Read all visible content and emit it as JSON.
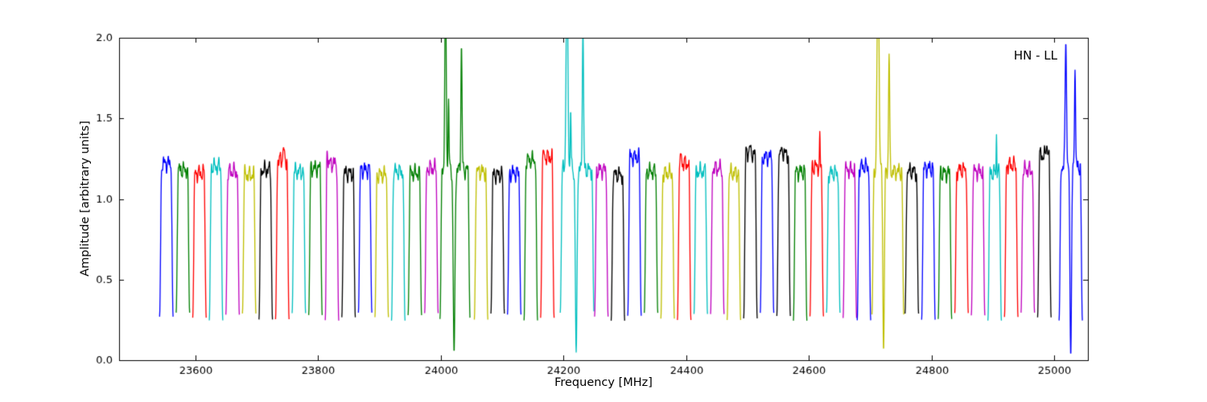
{
  "chart_data": {
    "type": "line",
    "title": "",
    "annotation": "HN - LL",
    "xlabel": "Frequency [MHz]",
    "ylabel": "Amplitude [arbitrary units]",
    "xlim": [
      23476,
      25055
    ],
    "ylim": [
      0,
      2.0
    ],
    "xticks": [
      23600,
      23800,
      24000,
      24200,
      24400,
      24600,
      24800,
      25000
    ],
    "yticks": [
      0,
      0.5,
      1.0,
      1.5,
      2.0
    ],
    "ytick_labels": [
      "0.0",
      "0.5",
      "1.0",
      "1.5",
      "2.0"
    ],
    "grid": false,
    "legend": false,
    "edge_level": 0.27,
    "rise_width": 3.5,
    "palette": {
      "b": "#0000ff",
      "g": "#007f00",
      "r": "#ff0000",
      "c": "#00bfbf",
      "m": "#bf00bf",
      "y": "#bfbf00",
      "k": "#000000"
    },
    "bands": [
      [
        23542,
        23564,
        "b",
        1.22
      ],
      [
        23569,
        23591,
        "g",
        1.18
      ],
      [
        23596,
        23618,
        "r",
        1.16
      ],
      [
        23623,
        23645,
        "c",
        1.2
      ],
      [
        23650,
        23672,
        "m",
        1.17
      ],
      [
        23677,
        23699,
        "y",
        1.15
      ],
      [
        23704,
        23726,
        "k",
        1.18
      ],
      [
        23731,
        23753,
        "r",
        1.24,
        [
          [
            23744,
            1.32,
            1.5
          ]
        ]
      ],
      [
        23758,
        23780,
        "c",
        1.17
      ],
      [
        23785,
        23807,
        "g",
        1.19
      ],
      [
        23812,
        23834,
        "m",
        1.22,
        [
          [
            23815,
            1.3,
            1.2
          ]
        ]
      ],
      [
        23839,
        23861,
        "k",
        1.16
      ],
      [
        23866,
        23888,
        "b",
        1.18
      ],
      [
        23893,
        23915,
        "y",
        1.15
      ],
      [
        23920,
        23942,
        "c",
        1.17
      ],
      [
        23947,
        23969,
        "g",
        1.16
      ],
      [
        23974,
        23996,
        "m",
        1.19
      ],
      [
        23999,
        24048,
        "g",
        1.18,
        [
          [
            24008,
            2.35,
            1.6
          ],
          [
            24013,
            1.62,
            1.0
          ],
          [
            24022,
            0.05,
            2.0
          ],
          [
            24034,
            1.95,
            1.3
          ]
        ]
      ],
      [
        24055,
        24077,
        "y",
        1.17
      ],
      [
        24082,
        24104,
        "k",
        1.15
      ],
      [
        24109,
        24131,
        "b",
        1.16
      ],
      [
        24136,
        24158,
        "g",
        1.24
      ],
      [
        24163,
        24185,
        "r",
        1.26,
        [
          [
            24168,
            1.3,
            1.2
          ]
        ]
      ],
      [
        24195,
        24250,
        "c",
        1.18,
        [
          [
            24206,
            2.45,
            2.0
          ],
          [
            24212,
            1.55,
            1.0
          ],
          [
            24221,
            0.05,
            1.9
          ],
          [
            24232,
            2.05,
            1.4
          ]
        ]
      ],
      [
        24251,
        24273,
        "m",
        1.18
      ],
      [
        24278,
        24300,
        "k",
        1.15
      ],
      [
        24305,
        24327,
        "b",
        1.26
      ],
      [
        24332,
        24354,
        "g",
        1.17
      ],
      [
        24359,
        24381,
        "y",
        1.16
      ],
      [
        24386,
        24408,
        "r",
        1.22,
        [
          [
            24392,
            1.28,
            1.2
          ]
        ]
      ],
      [
        24413,
        24435,
        "c",
        1.17
      ],
      [
        24440,
        24462,
        "m",
        1.19
      ],
      [
        24467,
        24489,
        "y",
        1.16
      ],
      [
        24494,
        24516,
        "k",
        1.28,
        [
          [
            24504,
            1.33,
            1.8
          ]
        ]
      ],
      [
        24521,
        24543,
        "b",
        1.26
      ],
      [
        24548,
        24570,
        "k",
        1.28,
        [
          [
            24556,
            1.32,
            1.5
          ]
        ]
      ],
      [
        24575,
        24597,
        "g",
        1.17
      ],
      [
        24602,
        24624,
        "r",
        1.2,
        [
          [
            24618,
            1.42,
            0.7
          ]
        ]
      ],
      [
        24629,
        24651,
        "c",
        1.16
      ],
      [
        24656,
        24678,
        "m",
        1.18
      ],
      [
        24679,
        24701,
        "b",
        1.2
      ],
      [
        24703,
        24755,
        "y",
        1.17,
        [
          [
            24713,
            2.5,
            2.2
          ],
          [
            24722,
            0.06,
            1.7
          ],
          [
            24731,
            1.9,
            1.3
          ]
        ]
      ],
      [
        24757,
        24779,
        "k",
        1.17
      ],
      [
        24784,
        24806,
        "b",
        1.19
      ],
      [
        24811,
        24833,
        "g",
        1.16
      ],
      [
        24838,
        24860,
        "r",
        1.18
      ],
      [
        24865,
        24887,
        "m",
        1.17
      ],
      [
        24892,
        24914,
        "c",
        1.16,
        [
          [
            24906,
            1.4,
            0.7
          ]
        ]
      ],
      [
        24919,
        24941,
        "r",
        1.21
      ],
      [
        24946,
        24968,
        "m",
        1.18
      ],
      [
        24973,
        24995,
        "k",
        1.27,
        [
          [
            24988,
            1.33,
            1.5
          ]
        ]
      ],
      [
        25008,
        25046,
        "b",
        1.2,
        [
          [
            25019,
            1.97,
            1.6
          ],
          [
            25027,
            0.03,
            1.8
          ],
          [
            25034,
            1.8,
            1.2
          ]
        ]
      ]
    ]
  }
}
